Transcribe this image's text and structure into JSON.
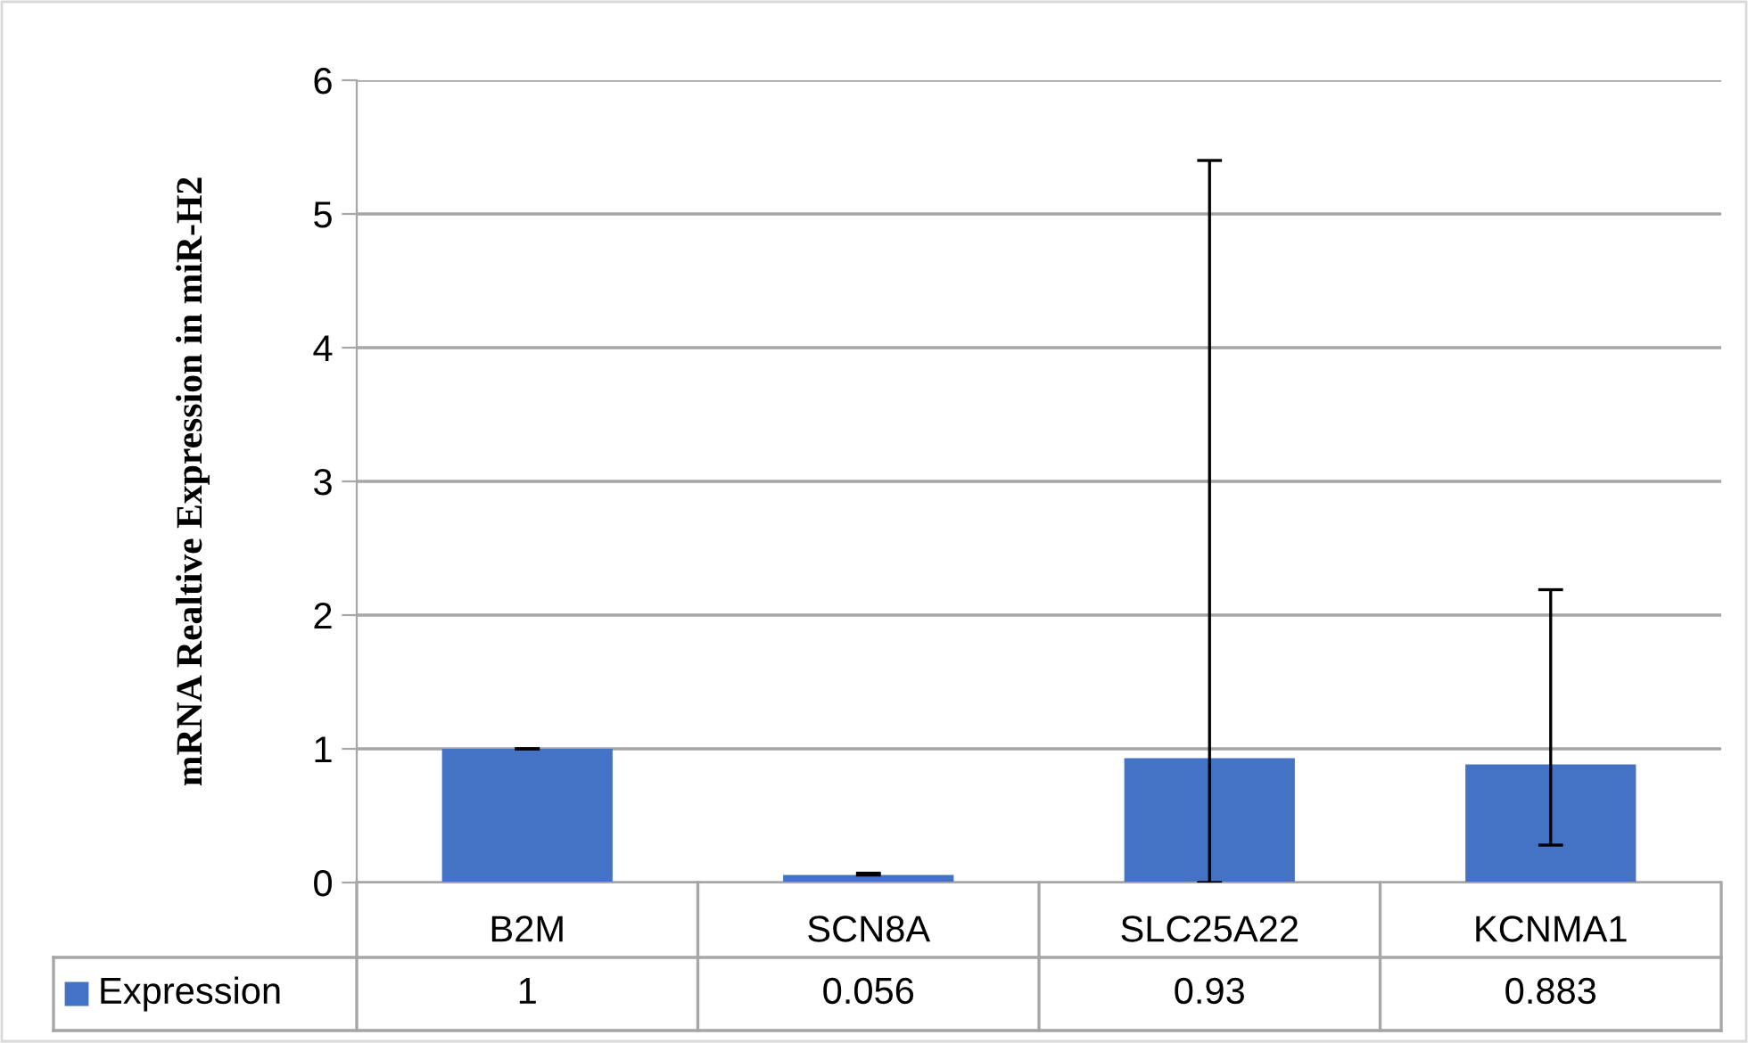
{
  "chart_data": {
    "type": "bar",
    "ylabel": "mRNA Realtive Expression in miR-H2",
    "categories": [
      "B2M",
      "SCN8A",
      "SLC25A22",
      "KCNMA1"
    ],
    "series": [
      {
        "name": "Expression",
        "color": "#4472c4",
        "values": [
          1,
          0.056,
          0.93,
          0.883
        ],
        "errors": [
          0,
          [
            0.056,
            0.07
          ],
          [
            0,
            5.4
          ],
          [
            0.28,
            2.19
          ]
        ]
      }
    ],
    "ylim": [
      0,
      6
    ],
    "yticks": [
      0,
      1,
      2,
      3,
      4,
      5,
      6
    ],
    "grid": "y",
    "data_labels": true,
    "legend": "bottom"
  }
}
